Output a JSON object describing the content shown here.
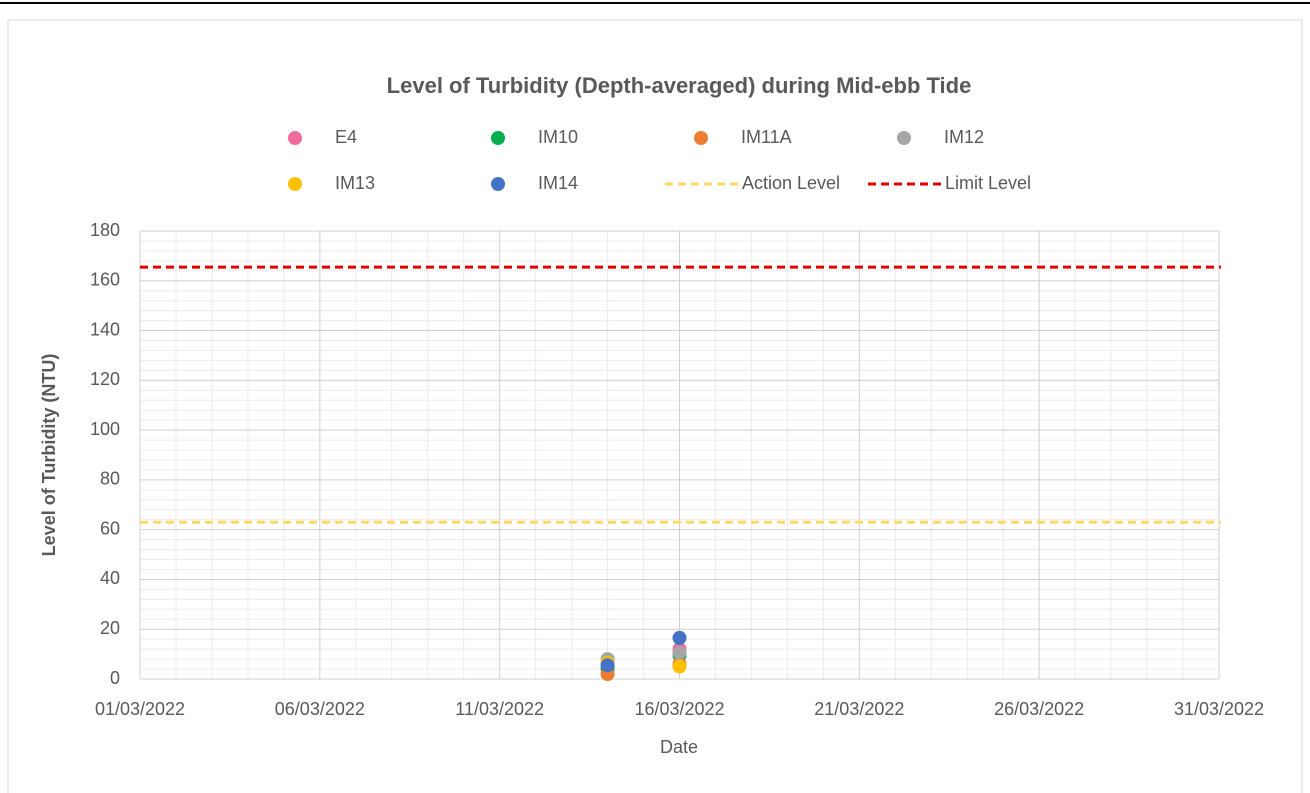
{
  "chart_data": {
    "type": "scatter",
    "title": "Level of Turbidity (Depth-averaged) during Mid-ebb Tide",
    "x_label": "Date",
    "y_label": "Level of Turbidity (NTU)",
    "x": [
      "2022-03-14",
      "2022-03-16"
    ],
    "series": [
      {
        "name": "E4",
        "color": "#f06b9c",
        "values": [
          5,
          12
        ]
      },
      {
        "name": "IM10",
        "color": "#00b050",
        "values": [
          4,
          9.5
        ]
      },
      {
        "name": "IM11A",
        "color": "#ed7d31",
        "values": [
          2,
          6
        ]
      },
      {
        "name": "IM12",
        "color": "#a5a5a5",
        "values": [
          8,
          10.5
        ]
      },
      {
        "name": "IM13",
        "color": "#ffc000",
        "values": [
          6.5,
          5
        ]
      },
      {
        "name": "IM14",
        "color": "#4472c4",
        "values": [
          5.5,
          16.5
        ]
      }
    ],
    "reference_lines": [
      {
        "name": "Action Level",
        "value": 63,
        "color": "#ffd966"
      },
      {
        "name": "Limit Level",
        "value": 165.5,
        "color": "#e00000"
      }
    ],
    "xlim": [
      "2022-03-01",
      "2022-03-31"
    ],
    "xticks": [
      {
        "value": "2022-03-01",
        "label": "01/03/2022"
      },
      {
        "value": "2022-03-06",
        "label": "06/03/2022"
      },
      {
        "value": "2022-03-11",
        "label": "11/03/2022"
      },
      {
        "value": "2022-03-16",
        "label": "16/03/2022"
      },
      {
        "value": "2022-03-21",
        "label": "21/03/2022"
      },
      {
        "value": "2022-03-26",
        "label": "26/03/2022"
      },
      {
        "value": "2022-03-31",
        "label": "31/03/2022"
      }
    ],
    "ylim": [
      0,
      180
    ],
    "yticks": [
      0,
      20,
      40,
      60,
      80,
      100,
      120,
      140,
      160,
      180
    ],
    "grid": true,
    "minor_grid": true,
    "legend": "top"
  }
}
